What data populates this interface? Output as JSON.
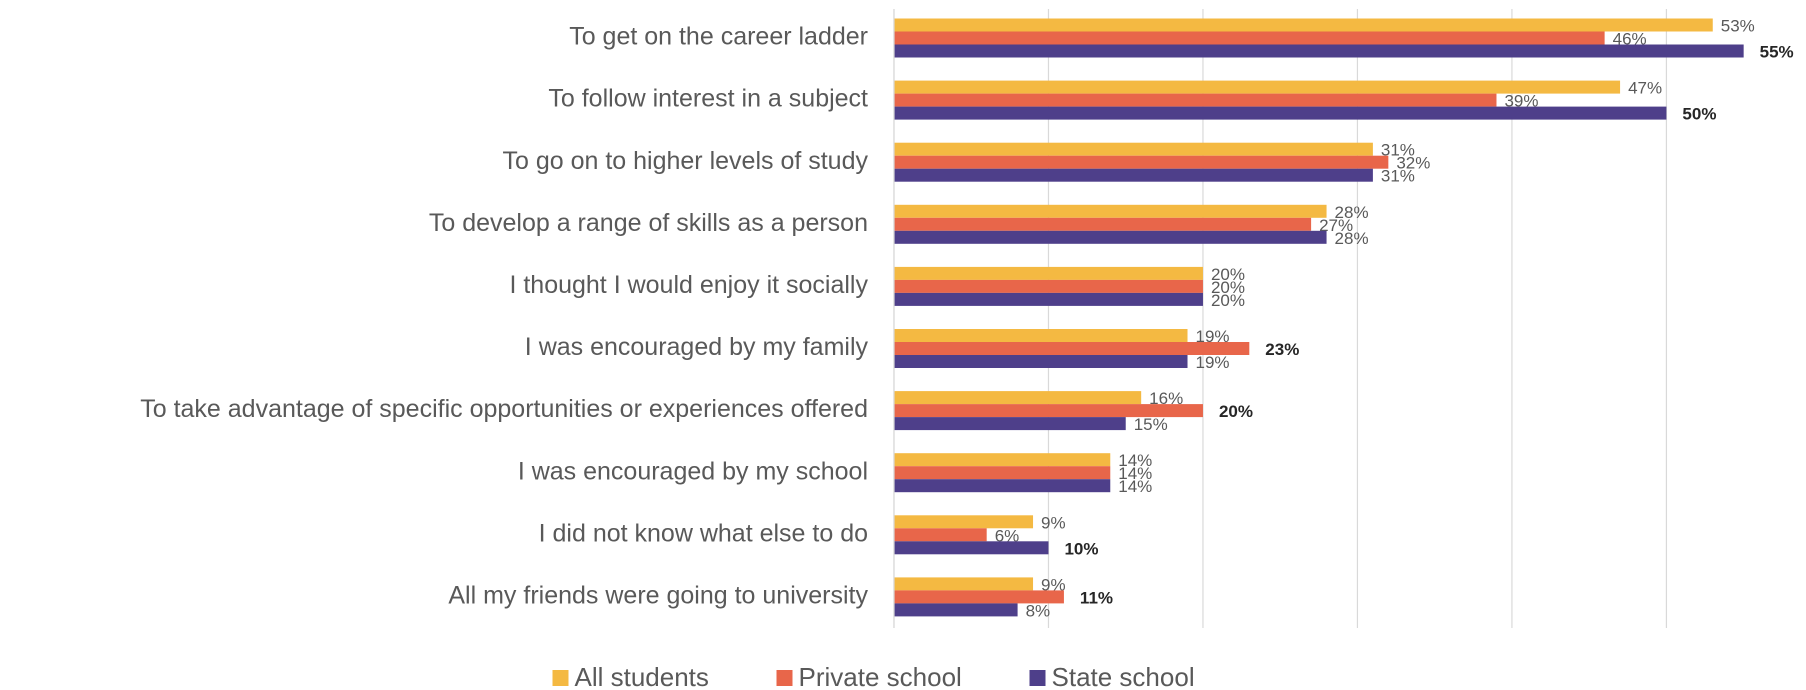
{
  "chart_data": {
    "type": "barh",
    "categories": [
      "To get on the career ladder",
      "To follow interest in a subject",
      "To go on to higher levels of study",
      "To develop a range of skills as a person",
      "I thought I would enjoy it socially",
      "I was encouraged by my family",
      "To take advantage of specific opportunities or experiences offered",
      "I was encouraged by my school",
      "I did not know what else to do",
      "All my friends were going to university"
    ],
    "series": [
      {
        "name": "All students",
        "color": "#f4b942",
        "values": [
          53,
          47,
          31,
          28,
          20,
          19,
          16,
          14,
          9,
          9
        ],
        "value_labels": [
          "53%",
          "47%",
          "31%",
          "28%",
          "20%",
          "19%",
          "16%",
          "14%",
          "9%",
          "9%"
        ],
        "bold": [
          false,
          false,
          false,
          false,
          false,
          false,
          false,
          false,
          false,
          false
        ]
      },
      {
        "name": "Private school",
        "color": "#e8664a",
        "values": [
          46,
          39,
          32,
          27,
          20,
          23,
          20,
          14,
          6,
          11
        ],
        "value_labels": [
          "46%",
          "39%",
          "32%",
          "27%",
          "20%",
          "23%",
          "20%",
          "14%",
          "6%",
          "11%"
        ],
        "bold": [
          false,
          false,
          false,
          false,
          false,
          true,
          true,
          false,
          false,
          true
        ]
      },
      {
        "name": "State school",
        "color": "#4e3f8a",
        "values": [
          55,
          50,
          31,
          28,
          20,
          19,
          15,
          14,
          10,
          8
        ],
        "value_labels": [
          "55%",
          "50%",
          "31%",
          "28%",
          "20%",
          "19%",
          "15%",
          "14%",
          "10%",
          "8%"
        ],
        "bold": [
          true,
          true,
          false,
          false,
          false,
          false,
          false,
          false,
          true,
          false
        ]
      }
    ],
    "xlim": [
      0,
      58
    ],
    "xticks": [
      0,
      10,
      20,
      30,
      40,
      50
    ],
    "grid": true,
    "legend": "bottom"
  }
}
